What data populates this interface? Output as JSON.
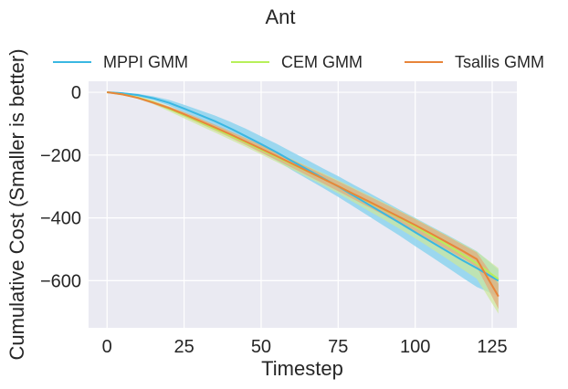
{
  "chart_data": {
    "type": "line",
    "title": "Ant",
    "xlabel": "Timestep",
    "ylabel": "Cumulative Cost (Smaller is better)",
    "xlim": [
      -6,
      133
    ],
    "ylim": [
      -750,
      35
    ],
    "xticks": [
      0,
      25,
      50,
      75,
      100,
      125
    ],
    "yticks": [
      0,
      -200,
      -400,
      -600
    ],
    "xtick_labels": [
      "0",
      "25",
      "50",
      "75",
      "100",
      "125"
    ],
    "ytick_labels": [
      "0",
      "−200",
      "−400",
      "−600"
    ],
    "grid": true,
    "legend_position": "top",
    "background": "#eaeaf2",
    "x": [
      0,
      5,
      10,
      15,
      20,
      25,
      30,
      35,
      40,
      45,
      50,
      55,
      60,
      65,
      70,
      75,
      80,
      85,
      90,
      95,
      100,
      105,
      110,
      115,
      120,
      127
    ],
    "series": [
      {
        "name": "MPPI GMM",
        "color": "#3ab7e2",
        "band_color": "#8dd3ef",
        "mean": [
          0,
          -3,
          -9,
          -19,
          -33,
          -52,
          -72,
          -92,
          -115,
          -140,
          -165,
          -191,
          -219,
          -246,
          -273,
          -300,
          -329,
          -358,
          -387,
          -416,
          -446,
          -475,
          -504,
          -533,
          -560,
          -600
        ],
        "upper": [
          0,
          -1,
          -5,
          -13,
          -24,
          -40,
          -57,
          -74,
          -94,
          -116,
          -140,
          -164,
          -190,
          -216,
          -242,
          -267,
          -294,
          -320,
          -347,
          -374,
          -400,
          -426,
          -452,
          -479,
          -506,
          -565
        ],
        "lower": [
          0,
          -5,
          -13,
          -25,
          -42,
          -64,
          -87,
          -110,
          -136,
          -164,
          -190,
          -218,
          -248,
          -276,
          -304,
          -333,
          -364,
          -395,
          -426,
          -457,
          -490,
          -522,
          -555,
          -588,
          -620,
          -650
        ]
      },
      {
        "name": "CEM GMM",
        "color": "#b7f05a",
        "band_color": "#cde89a",
        "mean": [
          0,
          -7,
          -17,
          -32,
          -52,
          -73,
          -94,
          -116,
          -138,
          -160,
          -183,
          -206,
          -229,
          -252,
          -275,
          -299,
          -324,
          -349,
          -374,
          -400,
          -427,
          -455,
          -484,
          -514,
          -545,
          -595
        ],
        "upper": [
          0,
          -5,
          -13,
          -26,
          -44,
          -64,
          -84,
          -105,
          -126,
          -147,
          -169,
          -191,
          -213,
          -235,
          -257,
          -280,
          -304,
          -328,
          -352,
          -377,
          -402,
          -428,
          -454,
          -480,
          -507,
          -560
        ],
        "lower": [
          0,
          -9,
          -21,
          -38,
          -60,
          -83,
          -106,
          -128,
          -151,
          -174,
          -198,
          -222,
          -246,
          -271,
          -296,
          -322,
          -350,
          -378,
          -406,
          -435,
          -465,
          -496,
          -528,
          -561,
          -594,
          -705
        ]
      },
      {
        "name": "Tsallis GMM",
        "color": "#e8853a",
        "band_color": "#e2a87a",
        "mean": [
          0,
          -7,
          -18,
          -33,
          -50,
          -70,
          -91,
          -112,
          -134,
          -157,
          -180,
          -203,
          -227,
          -251,
          -275,
          -299,
          -324,
          -348,
          -373,
          -398,
          -423,
          -449,
          -476,
          -503,
          -531,
          -650
        ],
        "upper": [
          0,
          -6,
          -15,
          -29,
          -45,
          -63,
          -83,
          -103,
          -124,
          -146,
          -168,
          -191,
          -214,
          -237,
          -260,
          -283,
          -307,
          -331,
          -355,
          -379,
          -404,
          -430,
          -456,
          -483,
          -510,
          -610
        ],
        "lower": [
          0,
          -8,
          -21,
          -37,
          -55,
          -77,
          -99,
          -121,
          -144,
          -168,
          -192,
          -216,
          -240,
          -265,
          -290,
          -315,
          -341,
          -366,
          -392,
          -418,
          -444,
          -471,
          -499,
          -527,
          -556,
          -690
        ]
      }
    ]
  }
}
